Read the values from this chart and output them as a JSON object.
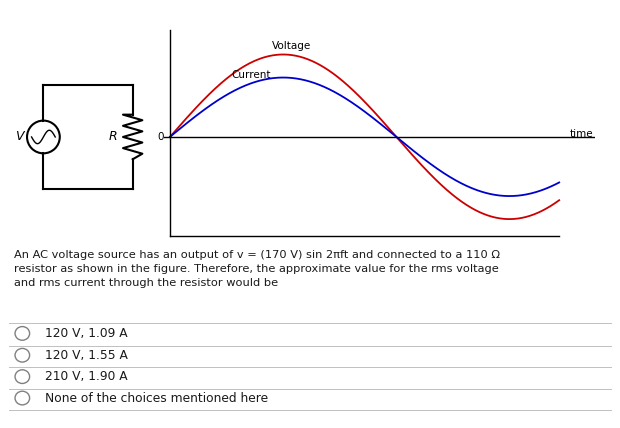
{
  "background_color": "#ffffff",
  "voltage_color": "#cc0000",
  "current_color": "#0000cc",
  "voltage_label": "Voltage",
  "current_label": "Current",
  "time_label": "time",
  "origin_label": "0",
  "question_text": "An AC voltage source has an output of v = (170 V) sin 2πft and connected to a 110 Ω\nresistor as shown in the figure. Therefore, the approximate value for the rms voltage\nand rms current through the resistor would be",
  "choices": [
    "120 V, 1.09 A",
    "120 V, 1.55 A",
    "210 V, 1.90 A",
    "None of the choices mentioned here"
  ],
  "voltage_amplitude": 1.0,
  "current_amplitude": 0.72,
  "circuit_label_V": "V",
  "circuit_label_R": "R",
  "text_color": "#1a1a1a",
  "divider_color": "#c0c0c0",
  "choice_text_color": "#1a1a1a"
}
